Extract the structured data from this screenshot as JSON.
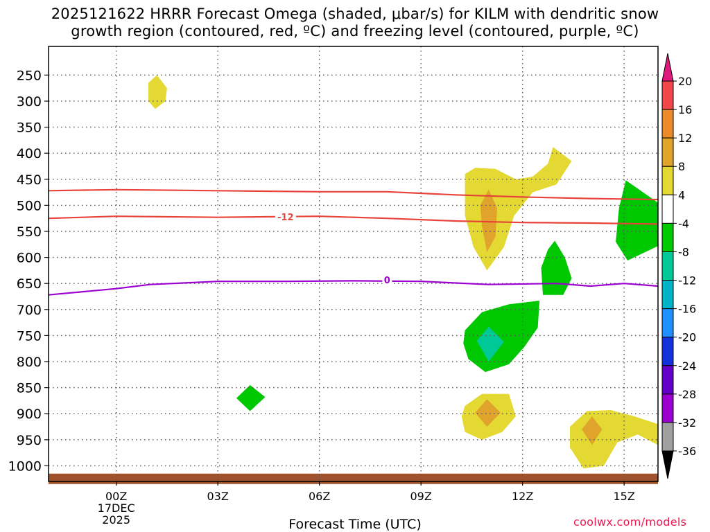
{
  "chart_data": {
    "type": "heatmap",
    "title_line1": "2025121622 HRRR Forecast Omega (shaded, μbar/s) for KILM with dendritic snow",
    "title_line2": "growth region (contoured, red, ºC) and freezing level (contoured, purple, ºC)",
    "xlabel": "Forecast Time (UTC)",
    "ylabel": "",
    "x_units": "hours after 00Z 17DEC 2025",
    "xlim": [
      -2,
      16
    ],
    "x_ticks": [
      {
        "value": 0,
        "label": "00Z",
        "sub1": "17DEC",
        "sub2": "2025"
      },
      {
        "value": 3,
        "label": "03Z"
      },
      {
        "value": 6,
        "label": "06Z"
      },
      {
        "value": 9,
        "label": "09Z"
      },
      {
        "value": 12,
        "label": "12Z"
      },
      {
        "value": 15,
        "label": "15Z"
      }
    ],
    "y_units": "mb",
    "ylim": [
      1030,
      195
    ],
    "y_ticks": [
      250,
      300,
      350,
      400,
      450,
      500,
      550,
      600,
      650,
      700,
      750,
      800,
      850,
      900,
      950,
      1000
    ],
    "ground_band_mb": [
      1015,
      1035
    ],
    "ground_color": "#a0522d",
    "contours": [
      {
        "name": "dgz-upper",
        "label": "",
        "color": "#e8433a",
        "points": [
          [
            -2,
            472
          ],
          [
            0,
            470
          ],
          [
            3,
            472
          ],
          [
            6,
            474
          ],
          [
            8,
            474
          ],
          [
            10,
            480
          ],
          [
            12,
            484
          ],
          [
            14,
            487
          ],
          [
            16,
            489
          ]
        ]
      },
      {
        "name": "dgz-lower",
        "label": "-12",
        "color": "#e8433a",
        "label_at": [
          5,
          522
        ],
        "points": [
          [
            -2,
            525
          ],
          [
            0,
            521
          ],
          [
            3,
            523
          ],
          [
            6,
            521
          ],
          [
            8,
            525
          ],
          [
            10,
            530
          ],
          [
            12,
            533
          ],
          [
            14,
            534
          ],
          [
            16,
            536
          ]
        ]
      },
      {
        "name": "freezing-level",
        "label": "0",
        "color": "#9b00d0",
        "label_at": [
          8,
          643
        ],
        "points": [
          [
            -2,
            672
          ],
          [
            0,
            660
          ],
          [
            1,
            652
          ],
          [
            3,
            646
          ],
          [
            5,
            646
          ],
          [
            7,
            645
          ],
          [
            9,
            646
          ],
          [
            11,
            652
          ],
          [
            13,
            650
          ],
          [
            14,
            655
          ],
          [
            15,
            650
          ],
          [
            16,
            655
          ]
        ]
      }
    ],
    "shaded_regions": [
      {
        "name": "yellow-300mb",
        "value": "4 to 8",
        "color": "#e4d832",
        "points": [
          [
            0.95,
            265
          ],
          [
            1.2,
            250
          ],
          [
            1.5,
            275
          ],
          [
            1.45,
            300
          ],
          [
            1.15,
            315
          ],
          [
            0.95,
            300
          ]
        ]
      },
      {
        "name": "green-870mb",
        "value": "-4 to -8",
        "color": "#00c800",
        "points": [
          [
            3.55,
            870
          ],
          [
            3.95,
            845
          ],
          [
            4.4,
            868
          ],
          [
            3.95,
            895
          ]
        ]
      },
      {
        "name": "yellow-1030mb-plume",
        "value": "4 to 8",
        "color": "#e4d832",
        "points": [
          [
            10.3,
            440
          ],
          [
            10.6,
            428
          ],
          [
            11.2,
            430
          ],
          [
            11.8,
            450
          ],
          [
            12.3,
            445
          ],
          [
            12.75,
            420
          ],
          [
            12.9,
            388
          ],
          [
            13.45,
            415
          ],
          [
            13.0,
            460
          ],
          [
            12.3,
            475
          ],
          [
            11.75,
            520
          ],
          [
            11.45,
            580
          ],
          [
            10.95,
            625
          ],
          [
            10.55,
            580
          ],
          [
            10.3,
            520
          ]
        ]
      },
      {
        "name": "orange-500mb",
        "value": "8 to 12",
        "color": "#e0a42c",
        "points": [
          [
            10.75,
            500
          ],
          [
            11.0,
            470
          ],
          [
            11.25,
            505
          ],
          [
            11.2,
            560
          ],
          [
            10.95,
            590
          ],
          [
            10.8,
            540
          ]
        ]
      },
      {
        "name": "green-630mb",
        "value": "-4 to -8",
        "color": "#00c800",
        "points": [
          [
            12.55,
            620
          ],
          [
            12.75,
            585
          ],
          [
            12.95,
            568
          ],
          [
            13.25,
            600
          ],
          [
            13.45,
            640
          ],
          [
            13.2,
            672
          ],
          [
            12.6,
            672
          ]
        ]
      },
      {
        "name": "green-490mb-right",
        "value": "-4 to -8",
        "color": "#00c800",
        "points": [
          [
            15.05,
            452
          ],
          [
            16.0,
            495
          ],
          [
            16.0,
            578
          ],
          [
            15.1,
            606
          ],
          [
            14.75,
            570
          ],
          [
            14.85,
            505
          ]
        ]
      },
      {
        "name": "green-740mb",
        "value": "-4 to -8",
        "color": "#00c800",
        "points": [
          [
            10.3,
            740
          ],
          [
            10.8,
            705
          ],
          [
            11.6,
            690
          ],
          [
            12.5,
            683
          ],
          [
            12.45,
            735
          ],
          [
            12.05,
            772
          ],
          [
            11.6,
            805
          ],
          [
            10.9,
            820
          ],
          [
            10.4,
            795
          ],
          [
            10.25,
            765
          ]
        ]
      },
      {
        "name": "teal-760mb",
        "value": "-8 to -12",
        "color": "#00c896",
        "points": [
          [
            10.65,
            760
          ],
          [
            11.0,
            733
          ],
          [
            11.45,
            762
          ],
          [
            11.0,
            800
          ]
        ]
      },
      {
        "name": "yellow-900mb-left",
        "value": "4 to 8",
        "color": "#e4d832",
        "points": [
          [
            10.3,
            885
          ],
          [
            10.8,
            862
          ],
          [
            11.6,
            862
          ],
          [
            11.8,
            905
          ],
          [
            11.4,
            935
          ],
          [
            10.8,
            950
          ],
          [
            10.3,
            935
          ],
          [
            10.2,
            905
          ]
        ]
      },
      {
        "name": "orange-900mb-left",
        "value": "8 to 12",
        "color": "#e0a42c",
        "points": [
          [
            10.6,
            898
          ],
          [
            10.95,
            872
          ],
          [
            11.35,
            898
          ],
          [
            10.95,
            925
          ]
        ]
      },
      {
        "name": "yellow-900mb-right",
        "value": "4 to 8",
        "color": "#e4d832",
        "points": [
          [
            13.4,
            925
          ],
          [
            13.9,
            895
          ],
          [
            14.6,
            893
          ],
          [
            15.3,
            905
          ],
          [
            16.0,
            920
          ],
          [
            16.0,
            960
          ],
          [
            15.4,
            940
          ],
          [
            14.8,
            955
          ],
          [
            14.4,
            1000
          ],
          [
            13.8,
            1005
          ],
          [
            13.4,
            965
          ]
        ]
      },
      {
        "name": "orange-900mb-right",
        "value": "8 to 12",
        "color": "#e0a42c",
        "points": [
          [
            13.75,
            930
          ],
          [
            14.05,
            905
          ],
          [
            14.35,
            930
          ],
          [
            14.05,
            960
          ]
        ]
      }
    ],
    "colorbar": {
      "labels": [
        "20",
        "16",
        "12",
        "8",
        "4",
        "-4",
        "-8",
        "-12",
        "-16",
        "-20",
        "-24",
        "-28",
        "-32",
        "-36"
      ],
      "bins": [
        {
          "color": "#e31a4f"
        },
        {
          "color": "#f0474a"
        },
        {
          "color": "#ec8a2a"
        },
        {
          "color": "#e0a42c"
        },
        {
          "color": "#e4d832"
        },
        {
          "color": "#ffffff"
        },
        {
          "color": "#00c800"
        },
        {
          "color": "#00c896"
        },
        {
          "color": "#00b4c8"
        },
        {
          "color": "#1e90ff"
        },
        {
          "color": "#1432dc"
        },
        {
          "color": "#6400c8"
        },
        {
          "color": "#9b00d0"
        },
        {
          "color": "#a0a0a0"
        }
      ],
      "top_arrow_color": "#e0197f",
      "bottom_arrow_color": "#000000"
    }
  },
  "credit": "coolwx.com/models"
}
